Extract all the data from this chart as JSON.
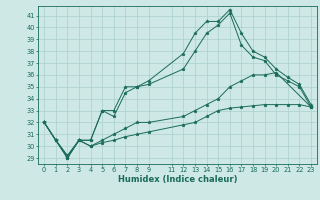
{
  "xlabel": "Humidex (Indice chaleur)",
  "bg_color": "#cde8e5",
  "line_color": "#1a6b5a",
  "grid_color": "#aad0cc",
  "xlim": [
    -0.5,
    23.5
  ],
  "ylim": [
    28.5,
    41.8
  ],
  "xticks": [
    0,
    1,
    2,
    3,
    4,
    5,
    6,
    7,
    8,
    9,
    11,
    12,
    13,
    14,
    15,
    16,
    17,
    18,
    19,
    20,
    21,
    22,
    23
  ],
  "yticks": [
    29,
    30,
    31,
    32,
    33,
    34,
    35,
    36,
    37,
    38,
    39,
    40,
    41
  ],
  "series": [
    {
      "x": [
        0,
        1,
        2,
        3,
        4,
        5,
        6,
        7,
        8,
        9,
        12,
        13,
        14,
        15,
        16,
        17,
        18,
        19,
        20,
        21,
        22,
        23
      ],
      "y": [
        32.0,
        30.5,
        29.0,
        30.5,
        30.5,
        33.0,
        33.0,
        35.0,
        35.0,
        35.5,
        37.8,
        39.5,
        40.5,
        40.5,
        41.5,
        39.5,
        38.0,
        37.5,
        36.5,
        35.8,
        35.2,
        33.5
      ]
    },
    {
      "x": [
        0,
        1,
        2,
        3,
        4,
        5,
        6,
        7,
        8,
        9,
        12,
        13,
        14,
        15,
        16,
        17,
        18,
        19,
        20,
        21,
        22,
        23
      ],
      "y": [
        32.0,
        30.5,
        29.0,
        30.5,
        30.5,
        33.0,
        32.5,
        34.5,
        35.0,
        35.2,
        36.5,
        38.0,
        39.5,
        40.2,
        41.2,
        38.5,
        37.5,
        37.2,
        36.0,
        35.5,
        35.0,
        33.3
      ]
    },
    {
      "x": [
        0,
        1,
        2,
        3,
        4,
        5,
        6,
        7,
        8,
        9,
        12,
        13,
        14,
        15,
        16,
        17,
        18,
        19,
        20,
        23
      ],
      "y": [
        32.0,
        30.5,
        29.2,
        30.5,
        30.0,
        30.5,
        31.0,
        31.5,
        32.0,
        32.0,
        32.5,
        33.0,
        33.5,
        34.0,
        35.0,
        35.5,
        36.0,
        36.0,
        36.2,
        33.3
      ]
    },
    {
      "x": [
        0,
        1,
        2,
        3,
        4,
        5,
        6,
        7,
        8,
        9,
        12,
        13,
        14,
        15,
        16,
        17,
        18,
        19,
        20,
        21,
        22,
        23
      ],
      "y": [
        32.0,
        30.5,
        29.2,
        30.5,
        30.0,
        30.3,
        30.5,
        30.8,
        31.0,
        31.2,
        31.8,
        32.0,
        32.5,
        33.0,
        33.2,
        33.3,
        33.4,
        33.5,
        33.5,
        33.5,
        33.5,
        33.3
      ]
    }
  ]
}
